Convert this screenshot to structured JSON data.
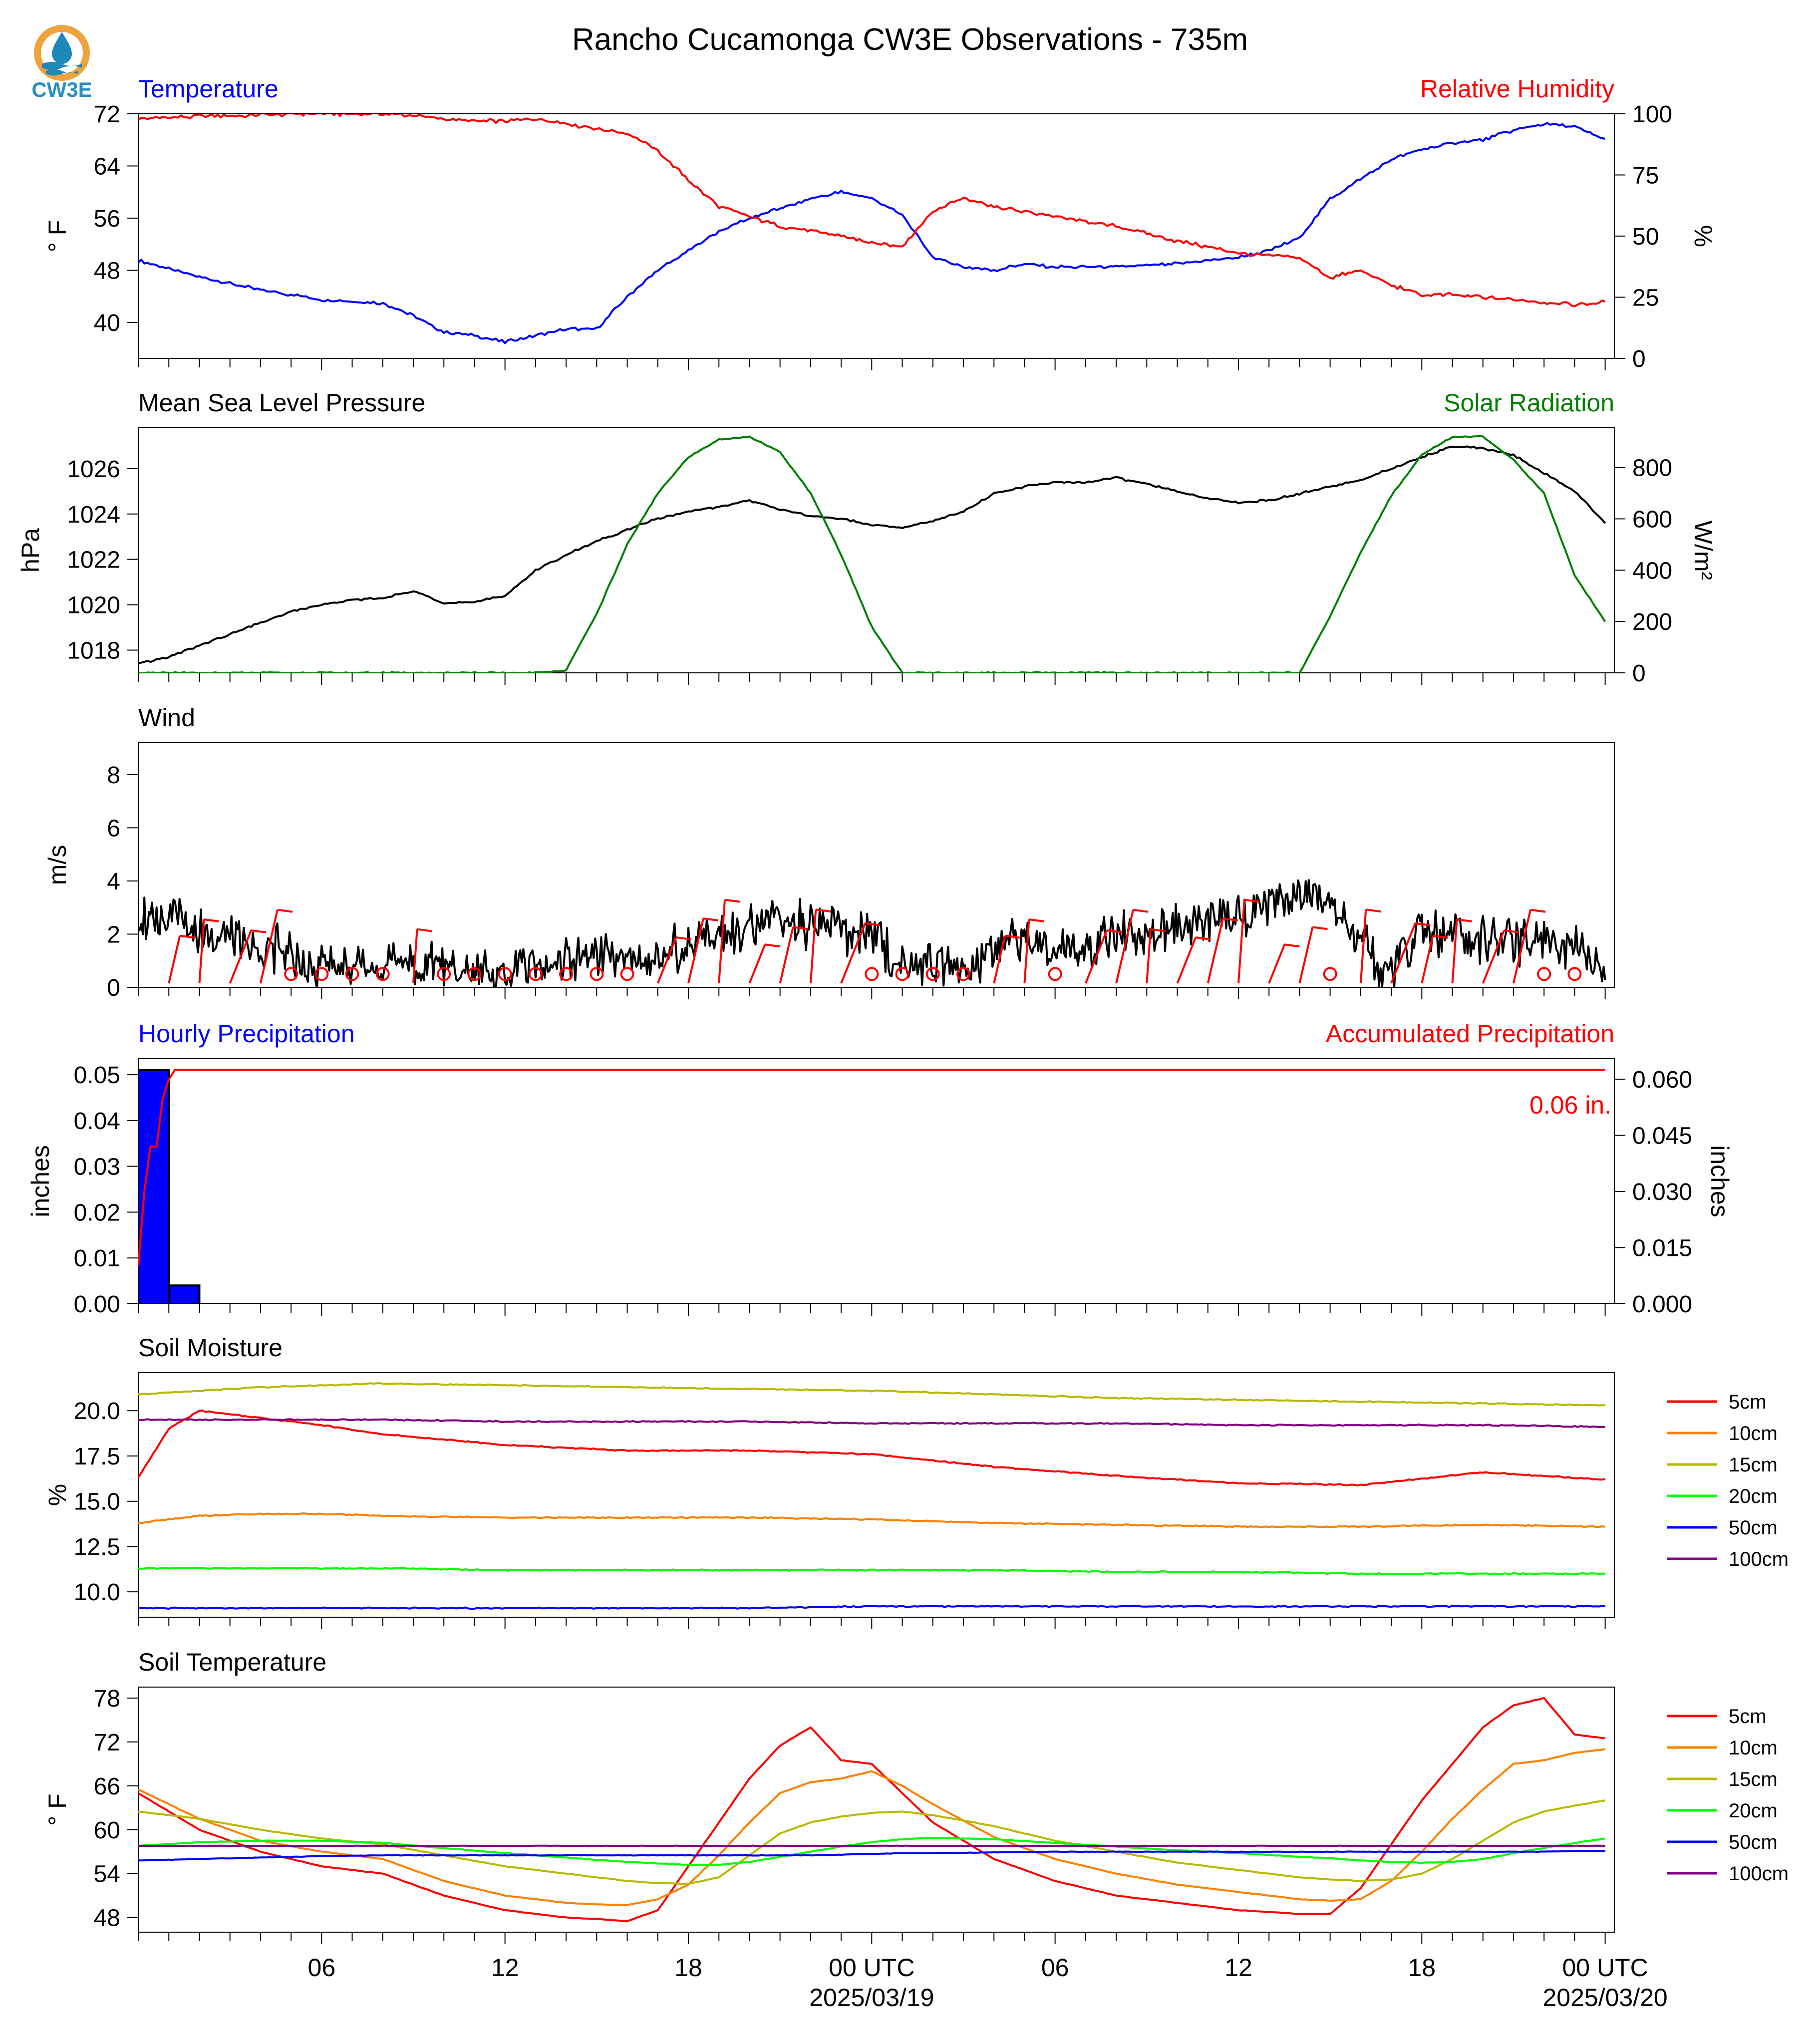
{
  "title": "Rancho Cucamonga CW3E Observations - 735m",
  "logo": {
    "text": "CW3E",
    "icon": "cw3e-sun-drop-logo",
    "colors": {
      "sun": "#f0a23c",
      "water": "#1e88b8",
      "text": "#2a8fc0"
    }
  },
  "time_axis": {
    "tick_labels": [
      "06",
      "12",
      "18",
      "00 UTC",
      "06",
      "12",
      "18",
      "00 UTC"
    ],
    "date_labels": [
      "2025/03/19",
      "2025/03/20"
    ]
  },
  "chart_data": [
    {
      "type": "line",
      "name": "temperature-humidity",
      "left_title": "Temperature",
      "right_title": "Relative Humidity",
      "ylabel": "° F",
      "ylabel_right": "%",
      "yticks": [
        40,
        48,
        56,
        64,
        72
      ],
      "yticks_right": [
        0,
        25,
        50,
        75,
        100
      ],
      "ylim": [
        34.5,
        72
      ],
      "ylim_right": [
        0,
        100
      ],
      "x_hours": [
        0,
        2,
        4,
        6,
        8,
        9,
        10,
        11,
        12,
        13,
        14,
        15,
        16,
        17,
        18,
        19,
        20,
        21,
        22,
        23,
        24,
        25,
        26,
        27,
        28,
        29,
        30,
        32,
        34,
        36,
        37,
        38,
        39,
        40,
        41,
        42,
        43,
        44,
        45,
        46,
        47,
        48
      ],
      "series": [
        {
          "color": "#0000ff",
          "axis": "left",
          "values": [
            49.5,
            47,
            45,
            43.5,
            43,
            41,
            38.5,
            38,
            37,
            38,
            39,
            39,
            44,
            48,
            51,
            54,
            56,
            57.5,
            59,
            60,
            59,
            56.5,
            50,
            48.5,
            48,
            49,
            48.5,
            48.5,
            49,
            50,
            51,
            53,
            59,
            62,
            65,
            66.5,
            67.5,
            68,
            69.5,
            70.5,
            70,
            68
          ]
        },
        {
          "color": "#ff0000",
          "axis": "right",
          "values": [
            98,
            99,
            99.5,
            100,
            100,
            99.5,
            98,
            97,
            97,
            98,
            96,
            94,
            92,
            85,
            73,
            62,
            58,
            54,
            52,
            50,
            47,
            46,
            60,
            66,
            62,
            60,
            58,
            54,
            48,
            43,
            42,
            41,
            33,
            36,
            30,
            26,
            26,
            25,
            24,
            23,
            22,
            23
          ]
        }
      ]
    },
    {
      "type": "line",
      "name": "pressure-solar",
      "left_title": "Mean Sea Level Pressure",
      "right_title": "Solar Radiation",
      "ylabel": "hPa",
      "ylabel_right": "W/m²",
      "yticks": [
        1018,
        1020,
        1022,
        1024,
        1026
      ],
      "yticks_right": [
        0,
        200,
        400,
        600,
        800
      ],
      "ylim": [
        1017.0,
        1027.8
      ],
      "ylim_right": [
        0,
        955
      ],
      "x_hours": [
        0,
        1,
        2,
        3,
        4,
        5,
        6,
        7,
        8,
        9,
        10,
        11,
        12,
        13,
        14,
        15,
        16,
        17,
        18,
        19,
        20,
        21,
        22,
        23,
        24,
        25,
        26,
        27,
        28,
        29,
        30,
        31,
        32,
        33,
        34,
        35,
        36,
        37,
        38,
        39,
        40,
        41,
        42,
        43,
        44,
        45,
        46,
        47,
        48
      ],
      "series": [
        {
          "color": "#000000",
          "axis": "left",
          "values": [
            1017.4,
            1017.7,
            1018.2,
            1018.7,
            1019.2,
            1019.7,
            1020.0,
            1020.2,
            1020.3,
            1020.6,
            1020.1,
            1020.1,
            1020.4,
            1021.5,
            1022.2,
            1022.8,
            1023.3,
            1023.8,
            1024.1,
            1024.3,
            1024.6,
            1024.2,
            1023.9,
            1023.8,
            1023.5,
            1023.4,
            1023.7,
            1024.1,
            1024.9,
            1025.2,
            1025.4,
            1025.4,
            1025.6,
            1025.3,
            1025.0,
            1024.7,
            1024.5,
            1024.6,
            1024.9,
            1025.2,
            1025.5,
            1026.0,
            1026.5,
            1027.0,
            1026.9,
            1026.6,
            1025.8,
            1025.0,
            1023.6
          ]
        },
        {
          "color": "#008000",
          "axis": "right",
          "values": [
            0,
            0,
            0,
            0,
            0,
            0,
            0,
            0,
            0,
            0,
            0,
            0,
            0,
            0,
            10,
            230,
            500,
            700,
            840,
            910,
            920,
            860,
            700,
            460,
            180,
            0,
            0,
            0,
            0,
            0,
            0,
            0,
            0,
            0,
            0,
            0,
            0,
            0,
            0,
            220,
            470,
            690,
            850,
            920,
            920,
            830,
            700,
            380,
            200
          ]
        }
      ]
    },
    {
      "type": "line",
      "name": "wind",
      "left_title": "Wind",
      "ylabel": "m/s",
      "yticks": [
        0,
        2,
        4,
        6,
        8
      ],
      "ylim": [
        0,
        9.2
      ],
      "x_hours": [
        0,
        1,
        2,
        3,
        4,
        5,
        6,
        7,
        8,
        9,
        10,
        11,
        12,
        13,
        14,
        15,
        16,
        17,
        18,
        19,
        20,
        21,
        22,
        23,
        24,
        25,
        26,
        27,
        28,
        29,
        30,
        31,
        32,
        33,
        34,
        35,
        36,
        37,
        38,
        39,
        40,
        41,
        42,
        43,
        44,
        45,
        46,
        47,
        48
      ],
      "series": [
        {
          "color": "#000000",
          "axis": "left",
          "values": [
            2.6,
            2.8,
            2.2,
            1.8,
            1.6,
            1.2,
            0.9,
            0.8,
            0.9,
            0.8,
            0.8,
            0.6,
            0.5,
            0.9,
            1.0,
            1.2,
            0.9,
            1.1,
            1.8,
            2.0,
            2.4,
            2.5,
            2.3,
            2.1,
            2.0,
            0.8,
            1.0,
            0.7,
            1.4,
            1.9,
            1.6,
            1.5,
            2.0,
            1.8,
            2.3,
            2.6,
            2.8,
            3.0,
            3.5,
            3.2,
            1.8,
            0.4,
            2.2,
            2.0,
            1.8,
            1.6,
            1.8,
            1.4,
            0.8
          ]
        }
      ],
      "calm_circle_hours": [
        5,
        6,
        7,
        8,
        10,
        11,
        12,
        13,
        14,
        15,
        16,
        24,
        25,
        26,
        27,
        30,
        39,
        46,
        47
      ],
      "barb_hours": [
        1,
        2,
        3,
        4,
        9,
        17,
        18,
        19,
        20,
        21,
        22,
        23,
        28,
        29,
        31,
        32,
        33,
        34,
        35,
        36,
        37,
        38,
        40,
        41,
        42,
        43,
        44,
        45
      ],
      "barb_color": "#ff0000"
    },
    {
      "type": "bar",
      "name": "precipitation",
      "left_title": "Hourly Precipitation",
      "right_title": "Accumulated Precipitation",
      "ylabel": "inches",
      "ylabel_right": "inches",
      "yticks": [
        "0.00",
        "0.01",
        "0.02",
        "0.03",
        "0.04",
        "0.05"
      ],
      "yticks_right": [
        "0.000",
        "0.015",
        "0.030",
        "0.045",
        "0.060"
      ],
      "ylim": [
        0,
        0.0535
      ],
      "ylim_right": [
        0,
        0.0655
      ],
      "bars": [
        {
          "hour": 0,
          "value": 0.051
        },
        {
          "hour": 1,
          "value": 0.004
        }
      ],
      "bar_color": "#0000ff",
      "accumulated": {
        "color": "#ff0000",
        "x_hours": [
          0,
          0.2,
          0.4,
          0.6,
          0.8,
          1.0,
          1.2,
          48
        ],
        "values": [
          0.01,
          0.03,
          0.042,
          0.042,
          0.055,
          0.06,
          0.0625,
          0.0625
        ]
      },
      "total_label": "0.06 in."
    },
    {
      "type": "line",
      "name": "soil-moisture",
      "left_title": "Soil Moisture",
      "ylabel": "%",
      "yticks": [
        "10.0",
        "12.5",
        "15.0",
        "17.5",
        "20.0"
      ],
      "ylim": [
        8.6,
        22.1
      ],
      "x_hours": [
        0,
        1,
        2,
        4,
        6,
        8,
        12,
        16,
        20,
        24,
        28,
        32,
        36,
        40,
        44,
        48
      ],
      "legend": [
        "5cm",
        "10cm",
        "15cm",
        "20cm",
        "50cm",
        "100cm"
      ],
      "series": [
        {
          "name": "5cm",
          "color": "#ff0000",
          "values": [
            16.3,
            19.0,
            20.0,
            19.6,
            19.2,
            18.7,
            18.1,
            17.8,
            17.8,
            17.6,
            16.9,
            16.4,
            16.0,
            15.9,
            16.6,
            16.2
          ]
        },
        {
          "name": "10cm",
          "color": "#ff8000",
          "values": [
            13.8,
            14.0,
            14.2,
            14.3,
            14.3,
            14.2,
            14.1,
            14.1,
            14.1,
            14.0,
            13.8,
            13.7,
            13.6,
            13.6,
            13.7,
            13.6
          ]
        },
        {
          "name": "15cm",
          "color": "#b8b800",
          "values": [
            20.9,
            21.0,
            21.1,
            21.3,
            21.4,
            21.5,
            21.4,
            21.3,
            21.2,
            21.1,
            20.9,
            20.7,
            20.6,
            20.5,
            20.4,
            20.3
          ]
        },
        {
          "name": "20cm",
          "color": "#00ff00",
          "values": [
            11.3,
            11.3,
            11.3,
            11.3,
            11.3,
            11.3,
            11.2,
            11.2,
            11.2,
            11.2,
            11.2,
            11.1,
            11.1,
            11.0,
            11.0,
            11.0
          ]
        },
        {
          "name": "50cm",
          "color": "#0000ff",
          "values": [
            9.1,
            9.1,
            9.1,
            9.1,
            9.1,
            9.1,
            9.1,
            9.1,
            9.1,
            9.2,
            9.2,
            9.2,
            9.2,
            9.2,
            9.2,
            9.2
          ]
        },
        {
          "name": "100cm",
          "color": "#800080",
          "values": [
            19.5,
            19.5,
            19.5,
            19.5,
            19.5,
            19.5,
            19.4,
            19.4,
            19.4,
            19.3,
            19.3,
            19.3,
            19.2,
            19.2,
            19.2,
            19.1
          ]
        }
      ]
    },
    {
      "type": "line",
      "name": "soil-temperature",
      "left_title": "Soil Temperature",
      "ylabel": "° F",
      "yticks": [
        48,
        54,
        60,
        66,
        72,
        78
      ],
      "ylim": [
        46.0,
        79.5
      ],
      "x_hours": [
        0,
        2,
        4,
        6,
        8,
        10,
        12,
        14,
        15,
        16,
        17,
        18,
        19,
        20,
        21,
        22,
        23,
        24,
        25,
        26,
        28,
        30,
        32,
        34,
        36,
        38,
        39,
        40,
        41,
        42,
        43,
        44,
        45,
        46,
        47,
        48
      ],
      "legend": [
        "5cm",
        "10cm",
        "15cm",
        "20cm",
        "50cm",
        "100cm"
      ],
      "series": [
        {
          "name": "5cm",
          "color": "#ff0000",
          "values": [
            65,
            60,
            57,
            55,
            54,
            51,
            49,
            48,
            47.8,
            47.5,
            49,
            55,
            61,
            67,
            71.5,
            74,
            69.5,
            69,
            65,
            61,
            56,
            53,
            51,
            50,
            49,
            48.5,
            48.5,
            52,
            58,
            64,
            69,
            74,
            77,
            78,
            73,
            72.5
          ]
        },
        {
          "name": "10cm",
          "color": "#ff8000",
          "values": [
            65.5,
            61.5,
            58.5,
            57,
            56,
            53,
            51,
            50,
            49.8,
            49.7,
            50.5,
            52.5,
            56.5,
            61,
            65,
            66.5,
            67,
            68,
            66,
            63.5,
            59,
            56,
            54,
            52.5,
            51.5,
            50.5,
            50.3,
            50.5,
            53,
            57,
            61.5,
            65.5,
            69,
            69.5,
            70.5,
            71
          ]
        },
        {
          "name": "15cm",
          "color": "#b8b800",
          "values": [
            62.5,
            61.5,
            60,
            58.8,
            58,
            56.5,
            55,
            54,
            53.5,
            53,
            52.7,
            52.6,
            53.5,
            56.5,
            59.5,
            61,
            61.8,
            62.3,
            62.5,
            62,
            60.5,
            58.5,
            57,
            55.5,
            54.5,
            53.5,
            53.2,
            53,
            53.2,
            54,
            56,
            58.5,
            61,
            62.5,
            63.3,
            64
          ]
        },
        {
          "name": "20cm",
          "color": "#00ff00",
          "values": [
            57.8,
            58.3,
            58.5,
            58.5,
            58.2,
            57.5,
            56.8,
            56.2,
            55.9,
            55.6,
            55.4,
            55.2,
            55.2,
            55.6,
            56.3,
            57,
            57.7,
            58.3,
            58.7,
            58.9,
            58.7,
            58.2,
            57.7,
            57.2,
            56.8,
            56.3,
            56.1,
            55.8,
            55.6,
            55.5,
            55.6,
            56,
            56.8,
            57.5,
            58.2,
            58.8
          ]
        },
        {
          "name": "50cm",
          "color": "#0000ff",
          "values": [
            55.8,
            56,
            56.2,
            56.4,
            56.5,
            56.5,
            56.5,
            56.5,
            56.5,
            56.5,
            56.5,
            56.5,
            56.5,
            56.5,
            56.5,
            56.5,
            56.6,
            56.7,
            56.8,
            56.8,
            56.9,
            57,
            57,
            57,
            57,
            57,
            57,
            57,
            57,
            57,
            57,
            57,
            57,
            57,
            57.1,
            57.1
          ]
        },
        {
          "name": "100cm",
          "color": "#800080",
          "values": [
            57.8,
            57.8,
            57.8,
            57.8,
            57.8,
            57.8,
            57.8,
            57.8,
            57.8,
            57.8,
            57.8,
            57.8,
            57.8,
            57.8,
            57.8,
            57.8,
            57.8,
            57.8,
            57.8,
            57.8,
            57.8,
            57.8,
            57.8,
            57.8,
            57.8,
            57.8,
            57.8,
            57.8,
            57.8,
            57.8,
            57.8,
            57.8,
            57.8,
            57.8,
            57.8,
            57.8
          ]
        }
      ]
    }
  ]
}
